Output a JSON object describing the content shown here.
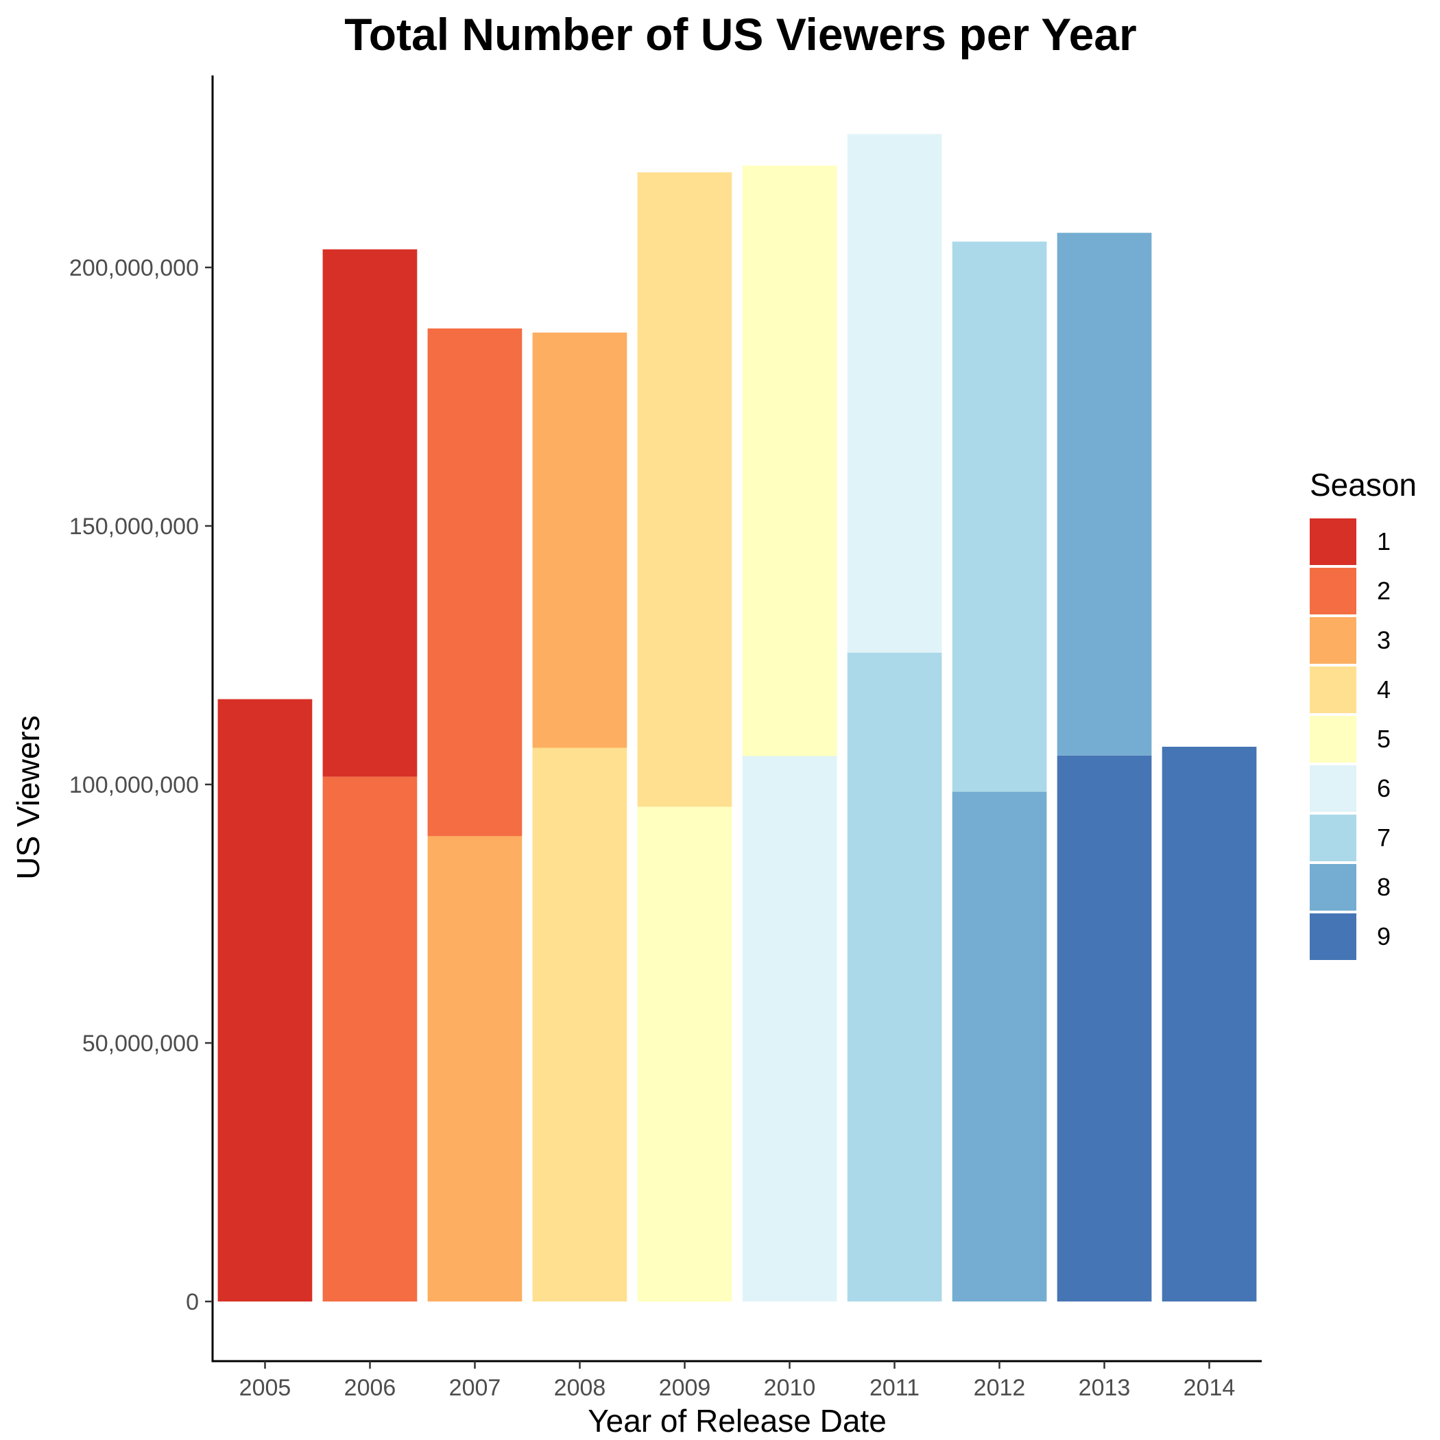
{
  "chart_data": {
    "type": "bar",
    "stacked": true,
    "title": "Total Number of US Viewers per Year",
    "xlabel": "Year of Release Date",
    "ylabel": "US Viewers",
    "ylim": [
      -11000000,
      236000000
    ],
    "y_ticks": [
      0,
      50000000,
      100000000,
      150000000,
      200000000
    ],
    "y_tick_labels": [
      "0",
      "50,000,000",
      "100,000,000",
      "150,000,000",
      "200,000,000"
    ],
    "grid": false,
    "legend_position": "right",
    "legend_title": "Season",
    "categories": [
      "2005",
      "2006",
      "2007",
      "2008",
      "2009",
      "2010",
      "2011",
      "2012",
      "2013",
      "2014"
    ],
    "series": [
      {
        "name": "1",
        "color": "#D73027",
        "values": [
          116500000,
          102000000,
          0,
          0,
          0,
          0,
          0,
          0,
          0,
          0
        ]
      },
      {
        "name": "2",
        "color": "#F46D43",
        "values": [
          0,
          101500000,
          98200000,
          0,
          0,
          0,
          0,
          0,
          0,
          0
        ]
      },
      {
        "name": "3",
        "color": "#FDAE61",
        "values": [
          0,
          0,
          90000000,
          80300000,
          0,
          0,
          0,
          0,
          0,
          0
        ]
      },
      {
        "name": "4",
        "color": "#FEE090",
        "values": [
          0,
          0,
          0,
          107100000,
          122700000,
          0,
          0,
          0,
          0,
          0
        ]
      },
      {
        "name": "5",
        "color": "#FFFFBF",
        "values": [
          0,
          0,
          0,
          0,
          95700000,
          114200000,
          0,
          0,
          0,
          0
        ]
      },
      {
        "name": "6",
        "color": "#E0F3F8",
        "values": [
          0,
          0,
          0,
          0,
          0,
          105500000,
          100300000,
          0,
          0,
          0
        ]
      },
      {
        "name": "7",
        "color": "#ABD9E9",
        "values": [
          0,
          0,
          0,
          0,
          0,
          0,
          125500000,
          106400000,
          0,
          0
        ]
      },
      {
        "name": "8",
        "color": "#74ADD1",
        "values": [
          0,
          0,
          0,
          0,
          0,
          0,
          0,
          98600000,
          101100000,
          0
        ]
      },
      {
        "name": "9",
        "color": "#4575B4",
        "values": [
          0,
          0,
          0,
          0,
          0,
          0,
          0,
          0,
          105600000,
          107300000
        ]
      }
    ]
  }
}
